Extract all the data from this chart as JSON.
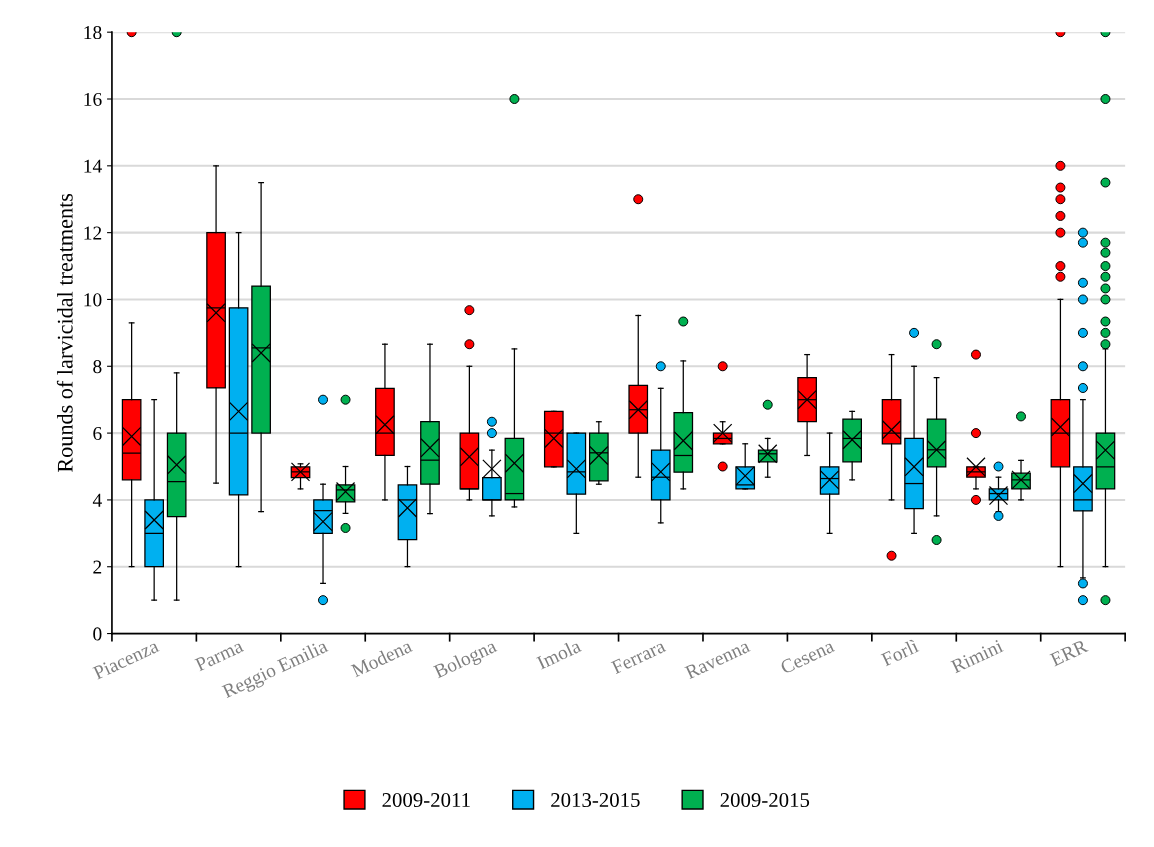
{
  "chart_data": {
    "type": "box",
    "ylabel": "Rounds of larvicidal treatments",
    "categories": [
      "Piacenza",
      "Parma",
      "Reggio Emilia",
      "Modena",
      "Bologna",
      "Imola",
      "Ferrara",
      "Ravenna",
      "Cesena",
      "Forlì",
      "Rimini",
      "ERR"
    ],
    "ylim": [
      0,
      18
    ],
    "yticks": [
      0,
      2,
      4,
      6,
      8,
      10,
      12,
      14,
      16,
      18
    ],
    "grid": "y",
    "legend": "bottom",
    "series": [
      {
        "name": "2009-2011",
        "color": "#ff0000",
        "boxes": [
          {
            "low": 2,
            "q1": 4.6,
            "median": 5.4,
            "q3": 7,
            "high": 9.3,
            "mean": 5.9,
            "outliers": [
              18
            ]
          },
          {
            "low": 4.5,
            "q1": 7.35,
            "median": 9.75,
            "q3": 12,
            "high": 14,
            "mean": 9.6
          },
          {
            "low": 4.33,
            "q1": 4.67,
            "median": 4.84,
            "q3": 4.99,
            "high": 5.08,
            "mean": 4.84
          },
          {
            "low": 4.0,
            "q1": 5.33,
            "median": 6.0,
            "q3": 7.34,
            "high": 8.66,
            "mean": 6.25
          },
          {
            "low": 4.0,
            "q1": 4.33,
            "median": 4.33,
            "q3": 6.0,
            "high": 8.0,
            "mean": 5.29,
            "outliers": [
              9.68,
              8.66
            ]
          },
          {
            "low": 4.99,
            "q1": 4.99,
            "median": 6.0,
            "q3": 6.65,
            "high": 6.65,
            "mean": 5.84
          },
          {
            "low": 4.68,
            "q1": 6.0,
            "median": 6.7,
            "q3": 7.43,
            "high": 9.52,
            "mean": 6.7,
            "outliers": [
              13.0
            ]
          },
          {
            "low": 5.68,
            "q1": 5.68,
            "median": 5.84,
            "q3": 6.0,
            "high": 6.34,
            "mean": 6.0,
            "outliers": [
              8.0,
              5.0
            ]
          },
          {
            "low": 5.33,
            "q1": 6.34,
            "median": 7.0,
            "q3": 7.66,
            "high": 8.35,
            "mean": 7.0
          },
          {
            "low": 4.0,
            "q1": 5.68,
            "median": 6.0,
            "q3": 7.0,
            "high": 8.35,
            "mean": 6.1,
            "outliers": [
              2.33
            ]
          },
          {
            "low": 4.33,
            "q1": 4.68,
            "median": 4.84,
            "q3": 4.99,
            "high": 4.99,
            "mean": 4.99,
            "outliers": [
              8.35,
              6.0,
              4.0
            ]
          },
          {
            "low": 2.0,
            "q1": 4.99,
            "median": 6.0,
            "q3": 7.0,
            "high": 10.0,
            "mean": 6.18,
            "outliers": [
              18.0,
              14.0,
              13.35,
              13.0,
              12.5,
              12.0,
              11.0,
              10.68
            ]
          }
        ]
      },
      {
        "name": "2013-2015",
        "color": "#00b0f0",
        "boxes": [
          {
            "low": 1,
            "q1": 2,
            "median": 3,
            "q3": 4,
            "high": 7,
            "mean": 3.4
          },
          {
            "low": 2,
            "q1": 4.15,
            "median": 6,
            "q3": 9.75,
            "high": 12,
            "mean": 6.65
          },
          {
            "low": 1.5,
            "q1": 3.0,
            "median": 3.68,
            "q3": 4.0,
            "high": 4.47,
            "mean": 3.35,
            "outliers": [
              7.0,
              1.0
            ]
          },
          {
            "low": 2.0,
            "q1": 2.81,
            "median": 4.0,
            "q3": 4.45,
            "high": 5.0,
            "mean": 3.76
          },
          {
            "low": 3.52,
            "q1": 4.0,
            "median": 4.0,
            "q3": 4.67,
            "high": 5.49,
            "mean": 4.93,
            "outliers": [
              6.34,
              6.0
            ]
          },
          {
            "low": 3.0,
            "q1": 4.17,
            "median": 4.84,
            "q3": 6.0,
            "high": 6.0,
            "mean": 4.93
          },
          {
            "low": 3.31,
            "q1": 4.0,
            "median": 4.68,
            "q3": 5.49,
            "high": 7.34,
            "mean": 4.84,
            "outliers": [
              8.0
            ]
          },
          {
            "low": 4.33,
            "q1": 4.33,
            "median": 4.45,
            "q3": 4.99,
            "high": 5.68,
            "mean": 4.72
          },
          {
            "low": 3.0,
            "q1": 4.17,
            "median": 4.64,
            "q3": 4.99,
            "high": 6.0,
            "mean": 4.6
          },
          {
            "low": 3.0,
            "q1": 3.74,
            "median": 4.49,
            "q3": 5.84,
            "high": 8.0,
            "mean": 4.99,
            "outliers": [
              9.0
            ]
          },
          {
            "low": 3.65,
            "q1": 4.0,
            "median": 4.19,
            "q3": 4.33,
            "high": 4.68,
            "mean": 4.13,
            "outliers": [
              5.0,
              3.52
            ]
          },
          {
            "low": 1.67,
            "q1": 3.67,
            "median": 4.0,
            "q3": 4.99,
            "high": 7.0,
            "mean": 4.49,
            "outliers": [
              12.0,
              11.7,
              10.5,
              10.0,
              9.0,
              8.0,
              7.35,
              1.5,
              1.0
            ]
          }
        ]
      },
      {
        "name": "2009-2015",
        "color": "#00b050",
        "boxes": [
          {
            "low": 1,
            "q1": 3.5,
            "median": 4.55,
            "q3": 6,
            "high": 7.8,
            "mean": 5.05,
            "outliers": [
              18
            ]
          },
          {
            "low": 3.65,
            "q1": 6,
            "median": 8.55,
            "q3": 10.4,
            "high": 13.5,
            "mean": 8.4
          },
          {
            "low": 3.6,
            "q1": 3.94,
            "median": 4.3,
            "q3": 4.45,
            "high": 5.0,
            "mean": 4.25,
            "outliers": [
              7.0,
              3.16
            ]
          },
          {
            "low": 3.59,
            "q1": 4.47,
            "median": 5.19,
            "q3": 6.34,
            "high": 8.66,
            "mean": 5.56
          },
          {
            "low": 3.79,
            "q1": 4.0,
            "median": 4.19,
            "q3": 5.84,
            "high": 8.52,
            "mean": 5.1,
            "outliers": [
              16.0
            ]
          },
          {
            "low": 4.47,
            "q1": 4.57,
            "median": 5.41,
            "q3": 6.0,
            "high": 6.34,
            "mean": 5.33
          },
          {
            "low": 4.33,
            "q1": 4.83,
            "median": 5.33,
            "q3": 6.61,
            "high": 8.16,
            "mean": 5.77,
            "outliers": [
              9.34
            ]
          },
          {
            "low": 4.68,
            "q1": 5.14,
            "median": 5.38,
            "q3": 5.49,
            "high": 5.84,
            "mean": 5.38,
            "outliers": [
              6.85
            ]
          },
          {
            "low": 4.6,
            "q1": 5.14,
            "median": 5.84,
            "q3": 6.42,
            "high": 6.65,
            "mean": 5.8
          },
          {
            "low": 3.52,
            "q1": 4.99,
            "median": 5.5,
            "q3": 6.42,
            "high": 7.66,
            "mean": 5.5,
            "outliers": [
              8.66,
              2.8
            ]
          },
          {
            "low": 4.0,
            "q1": 4.33,
            "median": 4.6,
            "q3": 4.8,
            "high": 5.18,
            "mean": 4.6,
            "outliers": [
              6.5
            ]
          },
          {
            "low": 2.0,
            "q1": 4.33,
            "median": 4.99,
            "q3": 6.0,
            "high": 8.52,
            "mean": 5.49,
            "outliers": [
              18.0,
              16.0,
              13.5,
              11.7,
              11.4,
              11.0,
              10.68,
              10.33,
              10.0,
              9.34,
              9.0,
              8.66,
              1.0
            ]
          }
        ]
      }
    ]
  }
}
